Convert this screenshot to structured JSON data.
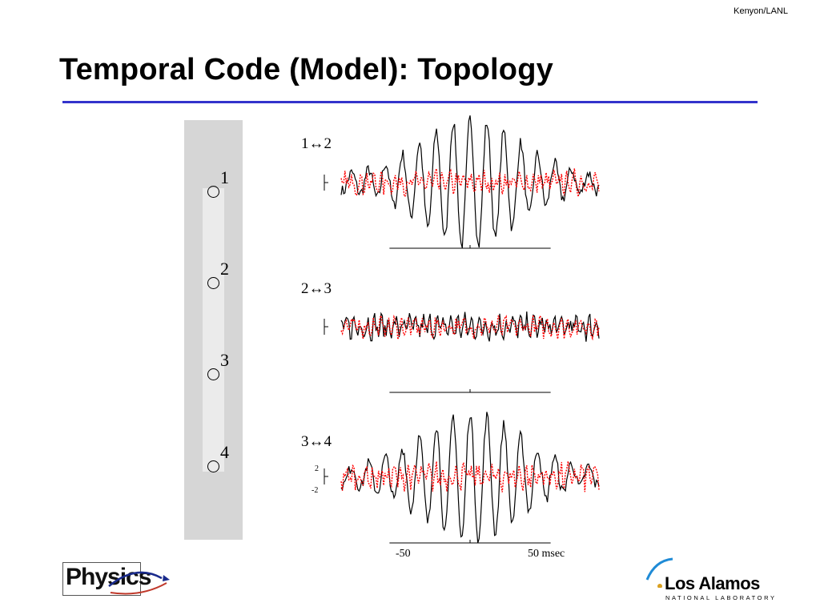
{
  "credit": "Kenyon/LANL",
  "title": "Temporal Code (Model): Topology",
  "colors": {
    "rule": "#3333cc",
    "solid_trace": "#000000",
    "dotted_trace": "#ff0000",
    "panel": "#d6d6d6"
  },
  "nodes": [
    {
      "label": "1"
    },
    {
      "label": "2"
    },
    {
      "label": "3"
    },
    {
      "label": "4"
    }
  ],
  "chart_data": {
    "type": "line",
    "panels": [
      {
        "label": "1↔2",
        "series": [
          {
            "style": "solid",
            "amplitude_profile": "peaked",
            "peak": 7.5
          },
          {
            "style": "dotted",
            "amplitude_profile": "flat",
            "peak": 1.5
          }
        ]
      },
      {
        "label": "2↔3",
        "series": [
          {
            "style": "solid",
            "amplitude_profile": "flat",
            "peak": 1.6
          },
          {
            "style": "dotted",
            "amplitude_profile": "flat",
            "peak": 1.3
          }
        ]
      },
      {
        "label": "3↔4",
        "series": [
          {
            "style": "solid",
            "amplitude_profile": "peaked",
            "peak": 7.5
          },
          {
            "style": "dotted",
            "amplitude_profile": "flat",
            "peak": 1.7
          }
        ]
      }
    ],
    "xlim": [
      -80,
      80
    ],
    "x_ticks": [
      {
        "value": -50,
        "label": "-50"
      },
      {
        "value": 50,
        "label": "50 msec"
      }
    ],
    "y_scale": {
      "top": "2",
      "bottom": "-2"
    }
  },
  "logos": {
    "left": {
      "text": "Physics"
    },
    "right": {
      "name": "Los Alamos",
      "sub": "NATIONAL LABORATORY"
    }
  }
}
